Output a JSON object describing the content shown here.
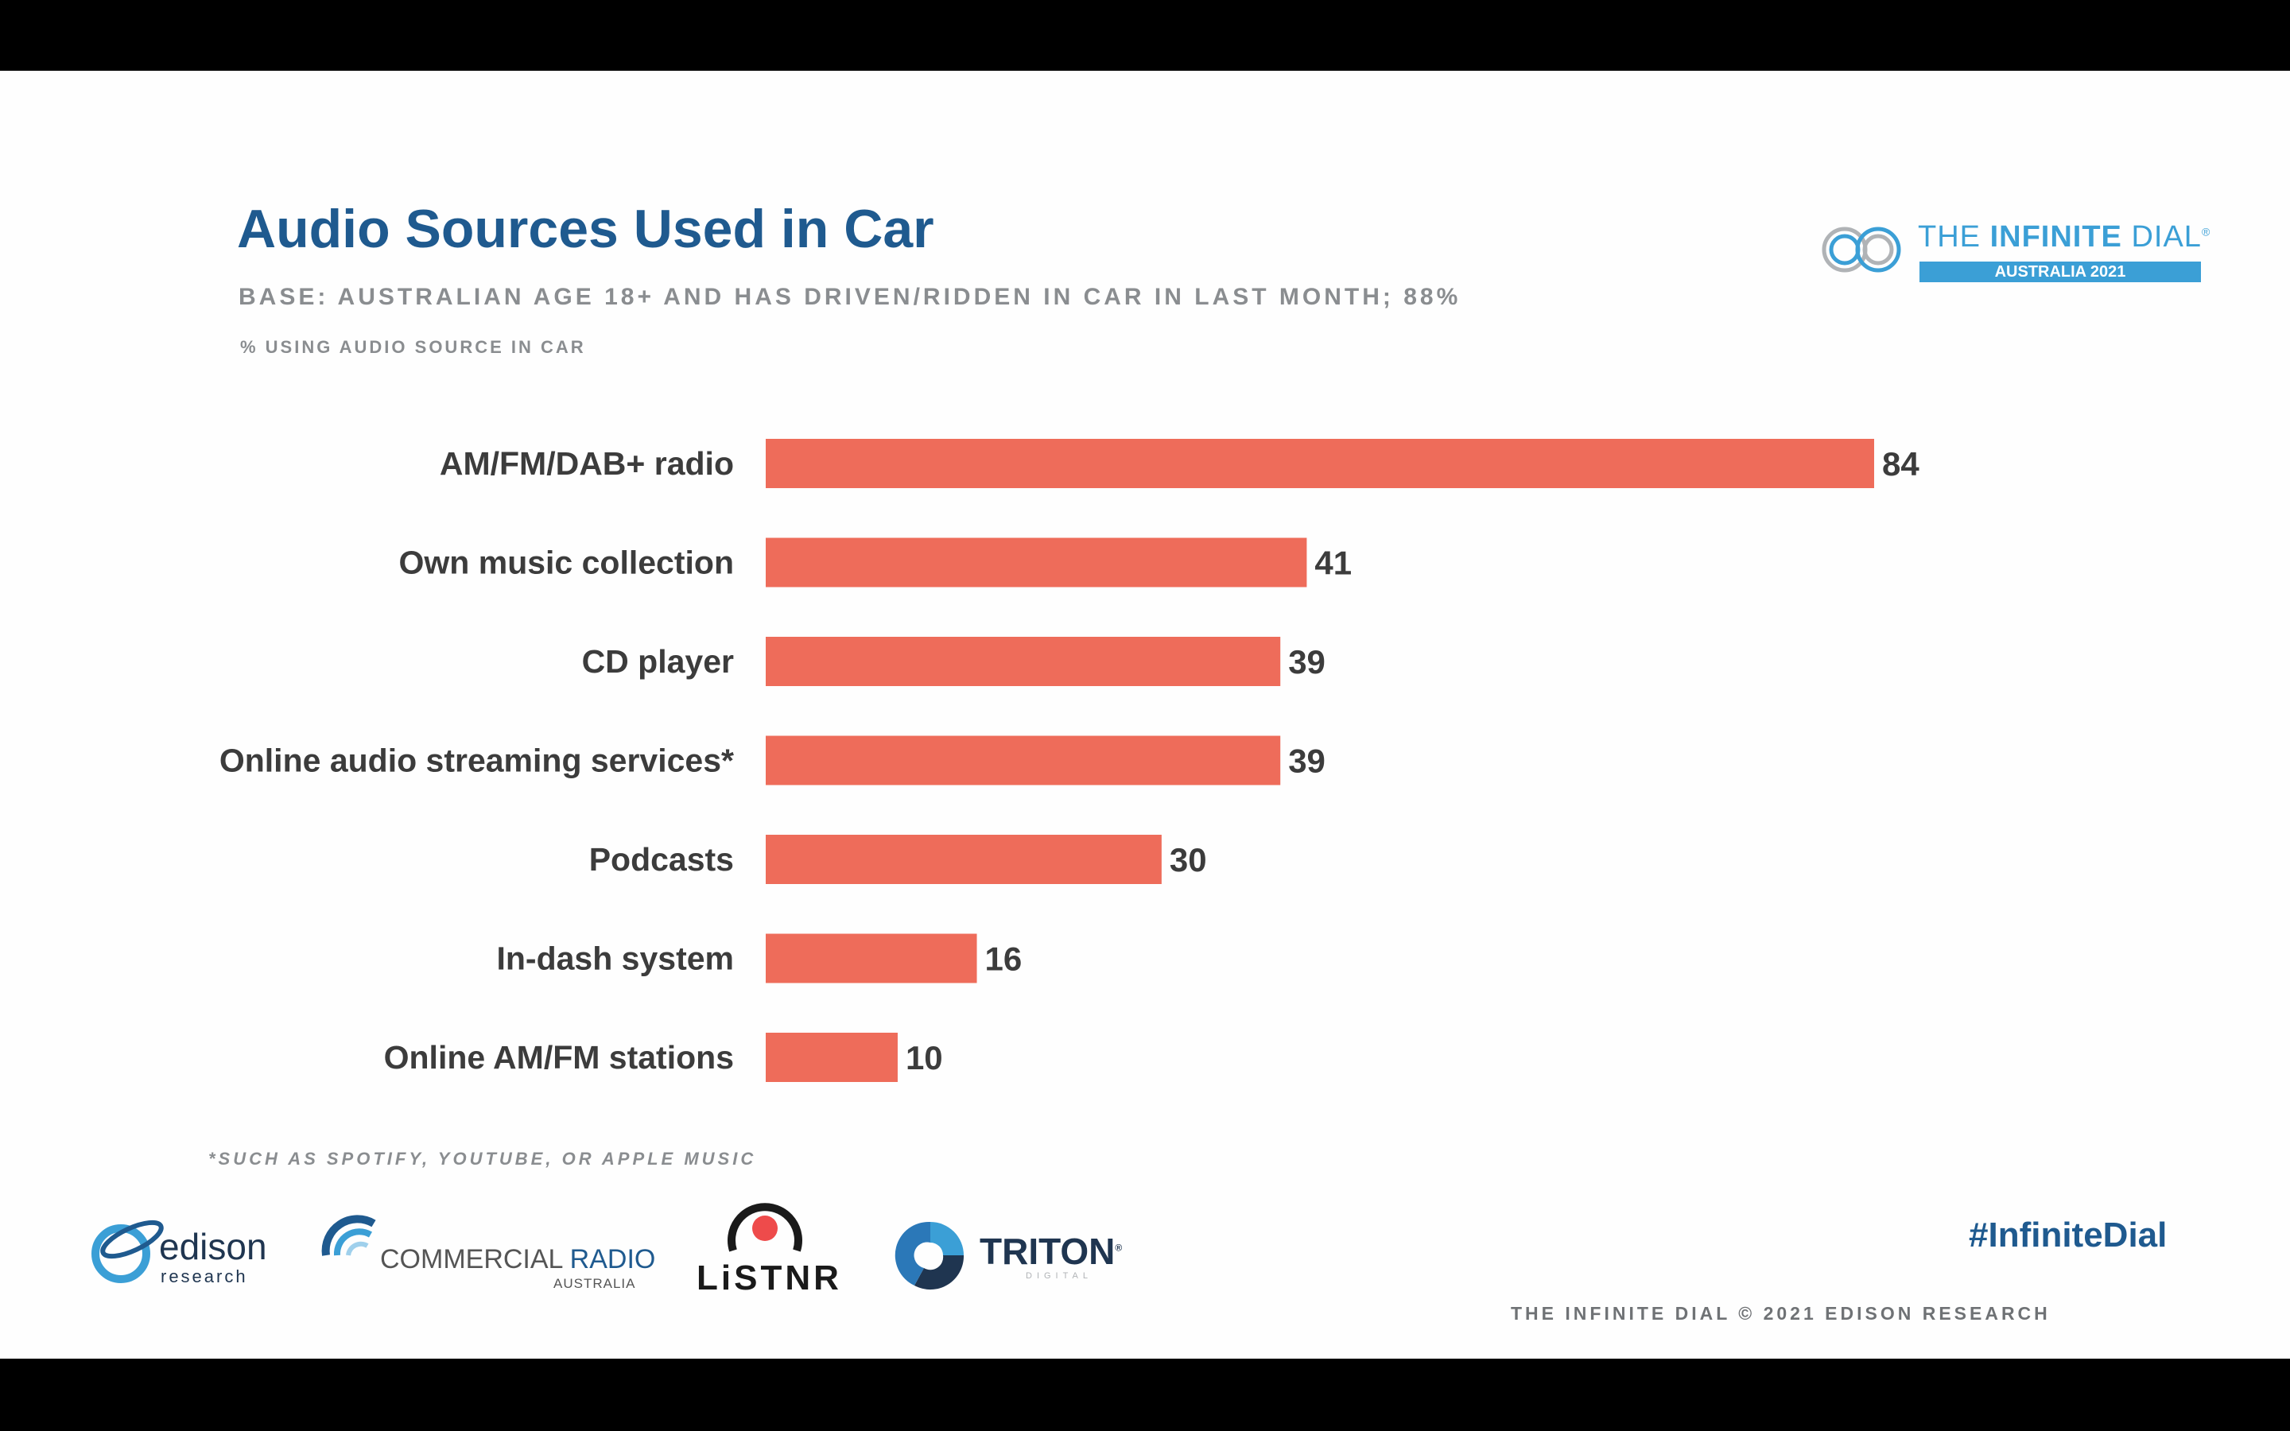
{
  "header": {
    "title": "Audio Sources Used in Car",
    "subtitle": "BASE: AUSTRALIAN AGE 18+ AND HAS DRIVEN/RIDDEN IN CAR IN LAST MONTH; 88%",
    "measure_label": "% USING AUDIO SOURCE IN CAR"
  },
  "brand": {
    "name_light": "THE ",
    "name_bold": "INFINITE",
    "name_tail": " DIAL",
    "registered": "®",
    "tagline": "AUSTRALIA 2021"
  },
  "chart_data": {
    "type": "bar",
    "orientation": "horizontal",
    "title": "Audio Sources Used in Car",
    "categories": [
      "AM/FM/DAB+ radio",
      "Own music collection",
      "CD player",
      "Online audio streaming services*",
      "Podcasts",
      "In-dash system",
      "Online AM/FM stations"
    ],
    "values": [
      84,
      41,
      39,
      39,
      30,
      16,
      10
    ],
    "xlim": [
      0,
      84
    ],
    "grid": false,
    "legend": "none"
  },
  "footnote": "*SUCH AS SPOTIFY, YOUTUBE, OR APPLE MUSIC",
  "logos": {
    "edison": {
      "name": "edison",
      "sub": "research"
    },
    "commercial_radio": {
      "name_a": "COMMERCIAL ",
      "name_b": "RADIO",
      "sub": "AUSTRALIA"
    },
    "listnr": {
      "name": "LiSTNR"
    },
    "triton": {
      "name": "TRITON",
      "sub": "DIGITAL",
      "registered": "®"
    }
  },
  "hashtag": "#InfiniteDial",
  "copyright": "THE INFINITE DIAL  © 2021 EDISON RESEARCH",
  "colors": {
    "bar": "#ee6c5a",
    "title": "#1f5a8f",
    "brand": "#3b9fd6",
    "gray_text": "#8a8d90",
    "label_text": "#3c3c3c"
  }
}
